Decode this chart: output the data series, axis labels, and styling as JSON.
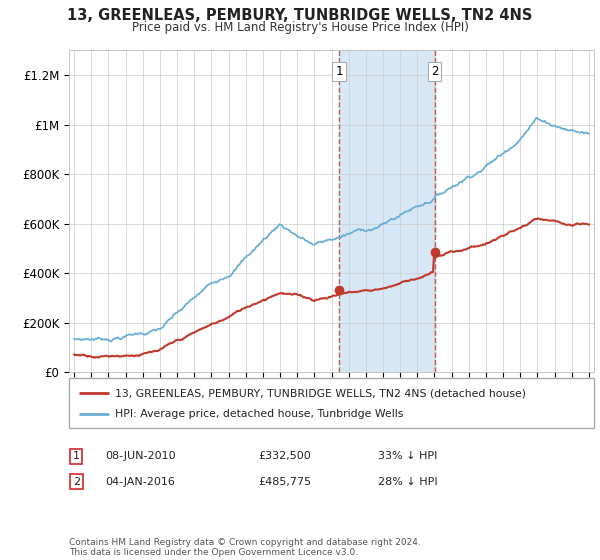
{
  "title": "13, GREENLEAS, PEMBURY, TUNBRIDGE WELLS, TN2 4NS",
  "subtitle": "Price paid vs. HM Land Registry's House Price Index (HPI)",
  "ylim": [
    0,
    1300000
  ],
  "yticks": [
    0,
    200000,
    400000,
    600000,
    800000,
    1000000,
    1200000
  ],
  "ytick_labels": [
    "£0",
    "£200K",
    "£400K",
    "£600K",
    "£800K",
    "£1M",
    "£1.2M"
  ],
  "sale1_date_num": 2010.44,
  "sale1_label": "08-JUN-2010",
  "sale1_price": 332500,
  "sale1_pct": "33% ↓ HPI",
  "sale2_date_num": 2016.01,
  "sale2_label": "04-JAN-2016",
  "sale2_price": 485775,
  "sale2_pct": "28% ↓ HPI",
  "legend_line1": "13, GREENLEAS, PEMBURY, TUNBRIDGE WELLS, TN2 4NS (detached house)",
  "legend_line2": "HPI: Average price, detached house, Tunbridge Wells",
  "footnote": "Contains HM Land Registry data © Crown copyright and database right 2024.\nThis data is licensed under the Open Government Licence v3.0.",
  "hpi_color": "#6baed6",
  "price_color": "#c0392b",
  "sale_marker_color": "#c0392b",
  "vline_color": "#c0392b",
  "shaded_color": "#d6e8f5",
  "background_color": "#ffffff",
  "grid_color": "#cccccc",
  "xlim_left": 1994.7,
  "xlim_right": 2025.3
}
